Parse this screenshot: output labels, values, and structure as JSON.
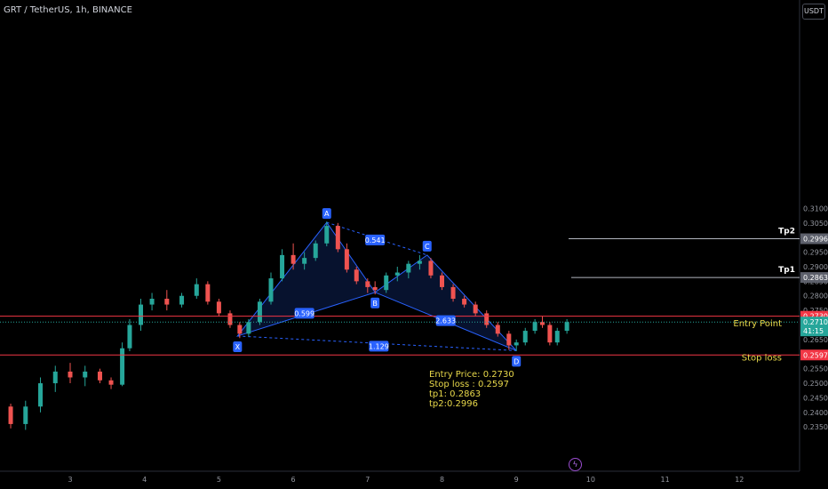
{
  "header": {
    "symbol_line": "GRT / TetherUS, 1h, BINANCE"
  },
  "currency_button": "USDT",
  "info_box": [
    "Entry Price: 0.2730",
    "Stop loss : 0.2597",
    "tp1: 0.2863",
    "tp2:0.2996"
  ],
  "chart_data": {
    "type": "candlestick",
    "ylim": [
      0.233,
      0.316
    ],
    "y_ticks": [
      "0.2350",
      "0.2400",
      "0.2450",
      "0.2500",
      "0.2550",
      "0.2600",
      "0.2650",
      "0.2700",
      "0.2750",
      "0.2800",
      "0.2850",
      "0.2900",
      "0.2950",
      "0.3000",
      "0.3050",
      "0.3100"
    ],
    "x_ticks": [
      "3",
      "4",
      "5",
      "6",
      "7",
      "8",
      "9",
      "10",
      "11",
      "12"
    ],
    "colors": {
      "up": "#26a69a",
      "down": "#ef5350",
      "pattern": "#2962ff",
      "red_line": "#f23645",
      "yellow": "#e8d84a"
    },
    "ohlc": [
      [
        2.0,
        0.246,
        0.247,
        0.2435,
        0.244
      ],
      [
        2.2,
        0.242,
        0.243,
        0.2345,
        0.236
      ],
      [
        2.4,
        0.236,
        0.244,
        0.234,
        0.242
      ],
      [
        2.6,
        0.242,
        0.252,
        0.24,
        0.25
      ],
      [
        2.8,
        0.25,
        0.256,
        0.247,
        0.254
      ],
      [
        3.0,
        0.254,
        0.257,
        0.25,
        0.252
      ],
      [
        3.2,
        0.252,
        0.256,
        0.249,
        0.254
      ],
      [
        3.4,
        0.254,
        0.255,
        0.25,
        0.251
      ],
      [
        3.55,
        0.251,
        0.252,
        0.248,
        0.2495
      ],
      [
        3.7,
        0.2495,
        0.264,
        0.249,
        0.262
      ],
      [
        3.8,
        0.262,
        0.272,
        0.261,
        0.27
      ],
      [
        3.95,
        0.27,
        0.279,
        0.268,
        0.277
      ],
      [
        4.1,
        0.277,
        0.281,
        0.275,
        0.279
      ],
      [
        4.3,
        0.279,
        0.282,
        0.275,
        0.277
      ],
      [
        4.5,
        0.277,
        0.281,
        0.276,
        0.28
      ],
      [
        4.7,
        0.28,
        0.286,
        0.279,
        0.284
      ],
      [
        4.85,
        0.284,
        0.285,
        0.277,
        0.278
      ],
      [
        5.0,
        0.278,
        0.279,
        0.273,
        0.274
      ],
      [
        5.15,
        0.274,
        0.275,
        0.269,
        0.27
      ],
      [
        5.28,
        0.27,
        0.271,
        0.2655,
        0.267
      ],
      [
        5.4,
        0.267,
        0.272,
        0.266,
        0.271
      ],
      [
        5.55,
        0.271,
        0.279,
        0.27,
        0.278
      ],
      [
        5.7,
        0.278,
        0.288,
        0.277,
        0.286
      ],
      [
        5.85,
        0.286,
        0.296,
        0.285,
        0.294
      ],
      [
        6.0,
        0.294,
        0.298,
        0.289,
        0.291
      ],
      [
        6.15,
        0.291,
        0.295,
        0.289,
        0.293
      ],
      [
        6.3,
        0.293,
        0.299,
        0.292,
        0.298
      ],
      [
        6.45,
        0.298,
        0.3055,
        0.297,
        0.304
      ],
      [
        6.6,
        0.304,
        0.305,
        0.295,
        0.296
      ],
      [
        6.72,
        0.296,
        0.298,
        0.288,
        0.289
      ],
      [
        6.85,
        0.289,
        0.29,
        0.284,
        0.285
      ],
      [
        7.0,
        0.285,
        0.286,
        0.281,
        0.283
      ],
      [
        7.1,
        0.283,
        0.285,
        0.2805,
        0.282
      ],
      [
        7.25,
        0.282,
        0.288,
        0.281,
        0.287
      ],
      [
        7.4,
        0.287,
        0.29,
        0.285,
        0.288
      ],
      [
        7.55,
        0.288,
        0.292,
        0.286,
        0.291
      ],
      [
        7.7,
        0.291,
        0.294,
        0.289,
        0.292
      ],
      [
        7.85,
        0.292,
        0.293,
        0.286,
        0.287
      ],
      [
        8.0,
        0.287,
        0.288,
        0.282,
        0.283
      ],
      [
        8.15,
        0.283,
        0.284,
        0.278,
        0.279
      ],
      [
        8.3,
        0.279,
        0.28,
        0.276,
        0.277
      ],
      [
        8.45,
        0.277,
        0.278,
        0.273,
        0.274
      ],
      [
        8.6,
        0.274,
        0.275,
        0.269,
        0.27
      ],
      [
        8.75,
        0.27,
        0.271,
        0.266,
        0.267
      ],
      [
        8.9,
        0.267,
        0.268,
        0.2615,
        0.263
      ],
      [
        9.0,
        0.263,
        0.265,
        0.261,
        0.264
      ],
      [
        9.12,
        0.264,
        0.269,
        0.263,
        0.268
      ],
      [
        9.25,
        0.268,
        0.272,
        0.267,
        0.271
      ],
      [
        9.35,
        0.271,
        0.273,
        0.269,
        0.27
      ],
      [
        9.45,
        0.27,
        0.271,
        0.263,
        0.264
      ],
      [
        9.55,
        0.264,
        0.269,
        0.263,
        0.268
      ],
      [
        9.68,
        0.268,
        0.272,
        0.267,
        0.271
      ]
    ],
    "harmonic_points": [
      {
        "label": "X",
        "x": 5.25,
        "y": 0.2662
      },
      {
        "label": "A",
        "x": 6.45,
        "y": 0.3052
      },
      {
        "label": "B",
        "x": 7.1,
        "y": 0.2812
      },
      {
        "label": "C",
        "x": 7.8,
        "y": 0.294
      },
      {
        "label": "D",
        "x": 9.0,
        "y": 0.2612
      }
    ],
    "ratios": [
      {
        "text": "0.541",
        "x": 7.1,
        "y": 0.2992
      },
      {
        "text": "0.599",
        "x": 6.15,
        "y": 0.274
      },
      {
        "text": "2.633",
        "x": 8.05,
        "y": 0.2715
      },
      {
        "text": "1.129",
        "x": 7.15,
        "y": 0.2627
      }
    ],
    "levels": [
      {
        "name": "entry",
        "value": 0.273,
        "label": "0.2730",
        "color": "#f23645"
      },
      {
        "name": "stop",
        "value": 0.2597,
        "label": "0.2597",
        "color": "#f23645"
      },
      {
        "name": "tp1",
        "value": 0.2863,
        "label": "0.2863",
        "color": "#9598a1",
        "text": "Tp1"
      },
      {
        "name": "tp2",
        "value": 0.2996,
        "label": "0.2996",
        "color": "#9598a1",
        "text": "Tp2"
      }
    ],
    "current_price": {
      "value": 0.271,
      "label": "0.2710",
      "countdown": "41:15"
    },
    "annotations": [
      {
        "text": "Entry Point",
        "y": 0.2705
      },
      {
        "text": "Stop loss",
        "y": 0.2587
      }
    ]
  }
}
